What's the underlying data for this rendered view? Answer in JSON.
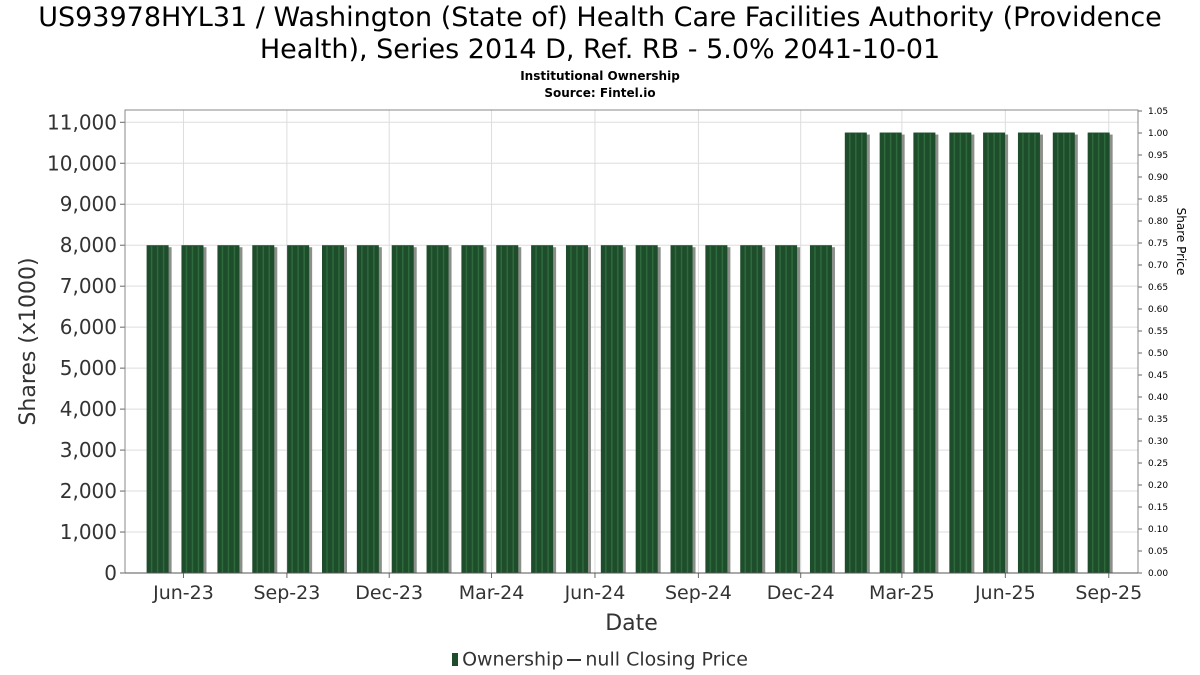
{
  "title_line1": "US93978HYL31 / Washington (State of) Health Care Facilities Authority (Providence",
  "title_line2": "Health), Series 2014 D, Ref. RB - 5.0% 2041-10-01",
  "subtitle_line1": "Institutional Ownership",
  "subtitle_line2": "Source: Fintel.io",
  "legend": {
    "ownership": "Ownership",
    "price": "null Closing Price"
  },
  "colors": {
    "bar": "#1e4d2b",
    "bar_shadow": "#8a8f8a",
    "grid": "#dddddd",
    "axis_text": "#333333"
  },
  "chart_data": {
    "type": "bar",
    "xlabel": "Date",
    "ylabel": "Shares (x1000)",
    "y2label": "Share Price",
    "ylim": [
      0,
      11300
    ],
    "y2lim": [
      0,
      1.05
    ],
    "yticks": [
      0,
      1000,
      2000,
      3000,
      4000,
      5000,
      6000,
      7000,
      8000,
      9000,
      10000,
      11000
    ],
    "ytick_labels": [
      "0",
      "1,000",
      "2,000",
      "3,000",
      "4,000",
      "5,000",
      "6,000",
      "7,000",
      "8,000",
      "9,000",
      "10,000",
      "11,000"
    ],
    "y2ticks": [
      "0.00",
      "0.05",
      "0.10",
      "0.15",
      "0.20",
      "0.25",
      "0.30",
      "0.35",
      "0.40",
      "0.45",
      "0.50",
      "0.55",
      "0.60",
      "0.65",
      "0.70",
      "0.75",
      "0.80",
      "0.85",
      "0.90",
      "0.95",
      "1.00",
      "1.05"
    ],
    "xlim": [
      "2023-04-10",
      "2025-09-27"
    ],
    "xticks": [
      {
        "date": "2023-06-01",
        "label": "Jun-23"
      },
      {
        "date": "2023-09-01",
        "label": "Sep-23"
      },
      {
        "date": "2023-12-01",
        "label": "Dec-23"
      },
      {
        "date": "2024-03-01",
        "label": "Mar-24"
      },
      {
        "date": "2024-06-01",
        "label": "Jun-24"
      },
      {
        "date": "2024-09-01",
        "label": "Sep-24"
      },
      {
        "date": "2024-12-01",
        "label": "Dec-24"
      },
      {
        "date": "2025-03-01",
        "label": "Mar-25"
      },
      {
        "date": "2025-06-01",
        "label": "Jun-25"
      },
      {
        "date": "2025-09-01",
        "label": "Sep-25"
      }
    ],
    "grid": true,
    "legend_position": "bottom",
    "series": [
      {
        "name": "Ownership",
        "x": [
          "2023-05-09",
          "2023-06-09",
          "2023-07-11",
          "2023-08-11",
          "2023-09-11",
          "2023-10-12",
          "2023-11-12",
          "2023-12-13",
          "2024-01-13",
          "2024-02-13",
          "2024-03-15",
          "2024-04-15",
          "2024-05-16",
          "2024-06-16",
          "2024-07-17",
          "2024-08-17",
          "2024-09-17",
          "2024-10-18",
          "2024-11-18",
          "2024-12-19",
          "2025-01-19",
          "2025-02-19",
          "2025-03-21",
          "2025-04-22",
          "2025-05-22",
          "2025-06-22",
          "2025-07-23",
          "2025-08-23"
        ],
        "values": [
          8000,
          8000,
          8000,
          8000,
          8000,
          8000,
          8000,
          8000,
          8000,
          8000,
          8000,
          8000,
          8000,
          8000,
          8000,
          8000,
          8000,
          8000,
          8000,
          8000,
          10750,
          10750,
          10750,
          10750,
          10750,
          10750,
          10750,
          10750
        ]
      }
    ]
  }
}
